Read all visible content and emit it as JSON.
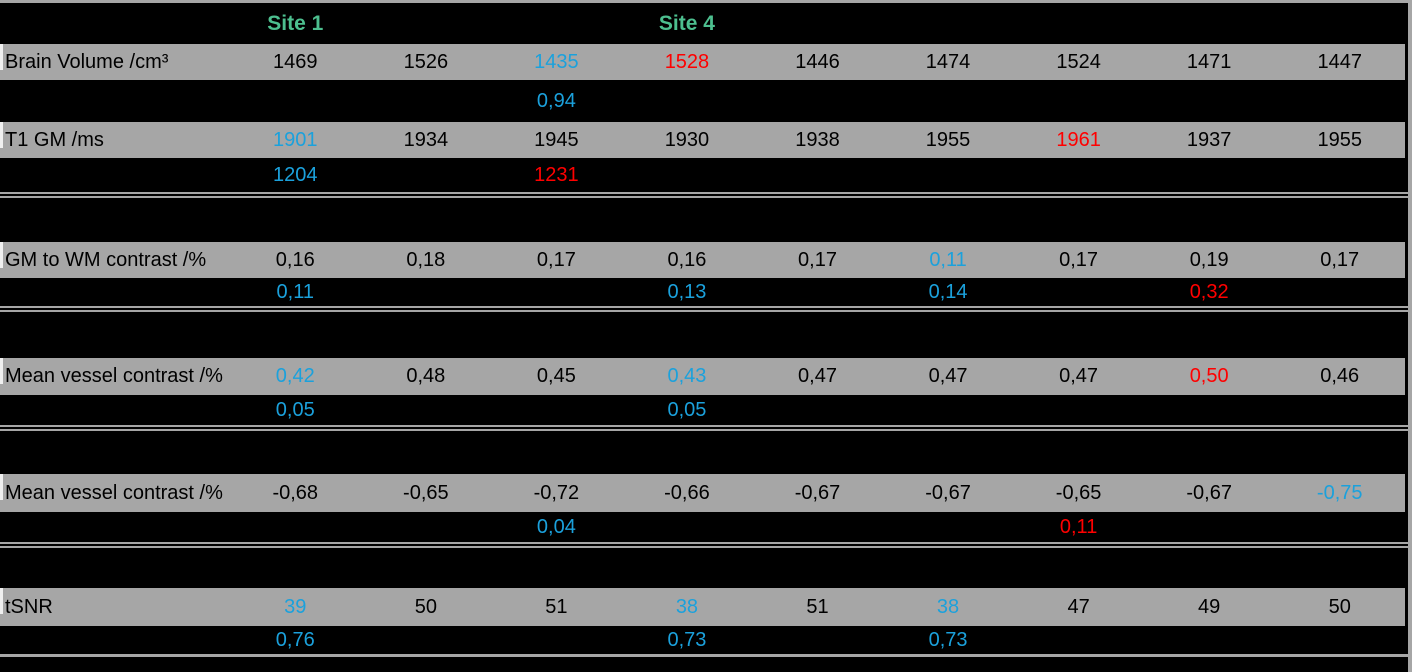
{
  "palette": {
    "background": "#000000",
    "row_gray": "#a6a6a6",
    "border_gray": "#a6a6a6",
    "site_green": "#4dbf8f",
    "highlight_blue": "#1ba1dc",
    "highlight_red": "#ff0000",
    "value_black": "#000000"
  },
  "chart_data": {
    "type": "table",
    "num_data_columns": 9,
    "site_headers": [
      {
        "label": "Site 1",
        "column_index": 1
      },
      {
        "label": "Site 4",
        "column_index": 4
      }
    ],
    "sections": [
      {
        "rows": [
          {
            "kind": "metric",
            "label": "Brain Volume /cm³",
            "values": [
              "1469",
              "1526",
              "1435",
              "1528",
              "1446",
              "1474",
              "1524",
              "1471",
              "1447"
            ],
            "colors": [
              "k",
              "k",
              "b",
              "r",
              "k",
              "k",
              "k",
              "k",
              "k"
            ]
          },
          {
            "kind": "sub",
            "label": "",
            "values": [
              "",
              "",
              "0,94",
              "",
              "",
              "",
              "",
              "",
              ""
            ],
            "colors": [
              "n",
              "n",
              "b",
              "n",
              "n",
              "n",
              "n",
              "n",
              "n"
            ]
          },
          {
            "kind": "metric",
            "label": "T1 GM /ms",
            "values": [
              "1901",
              "1934",
              "1945",
              "1930",
              "1938",
              "1955",
              "1961",
              "1937",
              "1955"
            ],
            "colors": [
              "b",
              "k",
              "k",
              "k",
              "k",
              "k",
              "r",
              "k",
              "k"
            ]
          },
          {
            "kind": "sub",
            "label": "",
            "values": [
              "1204",
              "",
              "1231",
              "",
              "",
              "",
              "",
              "",
              ""
            ],
            "colors": [
              "b",
              "n",
              "r",
              "n",
              "n",
              "n",
              "n",
              "n",
              "n"
            ]
          }
        ]
      },
      {
        "rows": [
          {
            "kind": "metric",
            "label": "GM to WM contrast /%",
            "values": [
              "0,16",
              "0,18",
              "0,17",
              "0,16",
              "0,17",
              "0,11",
              "0,17",
              "0,19",
              "0,17"
            ],
            "colors": [
              "k",
              "k",
              "k",
              "k",
              "k",
              "b",
              "k",
              "k",
              "k"
            ]
          },
          {
            "kind": "sub",
            "label": "",
            "values": [
              "0,11",
              "",
              "",
              "0,13",
              "",
              "0,14",
              "",
              "0,32",
              ""
            ],
            "colors": [
              "b",
              "n",
              "n",
              "b",
              "n",
              "b",
              "n",
              "r",
              "n"
            ]
          }
        ]
      },
      {
        "rows": [
          {
            "kind": "metric",
            "label": "Mean vessel contrast /%",
            "values": [
              "0,42",
              "0,48",
              "0,45",
              "0,43",
              "0,47",
              "0,47",
              "0,47",
              "0,50",
              "0,46"
            ],
            "colors": [
              "b",
              "k",
              "k",
              "b",
              "k",
              "k",
              "k",
              "r",
              "k"
            ]
          },
          {
            "kind": "sub",
            "label": "",
            "values": [
              "0,05",
              "",
              "",
              "0,05",
              "",
              "",
              "",
              "",
              ""
            ],
            "colors": [
              "b",
              "n",
              "n",
              "b",
              "n",
              "n",
              "n",
              "n",
              "n"
            ]
          }
        ]
      },
      {
        "rows": [
          {
            "kind": "metric",
            "label": "Mean vessel contrast /%",
            "values": [
              "-0,68",
              "-0,65",
              "-0,72",
              "-0,66",
              "-0,67",
              "-0,67",
              "-0,65",
              "-0,67",
              "-0,75"
            ],
            "colors": [
              "k",
              "k",
              "k",
              "k",
              "k",
              "k",
              "k",
              "k",
              "b"
            ]
          },
          {
            "kind": "sub",
            "label": "",
            "values": [
              "",
              "",
              "0,04",
              "",
              "",
              "",
              "0,11",
              "",
              ""
            ],
            "colors": [
              "n",
              "n",
              "b",
              "n",
              "n",
              "n",
              "r",
              "n",
              "n"
            ]
          }
        ]
      },
      {
        "rows": [
          {
            "kind": "metric",
            "label": "tSNR",
            "values": [
              "39",
              "50",
              "51",
              "38",
              "51",
              "38",
              "47",
              "49",
              "50"
            ],
            "colors": [
              "b",
              "k",
              "k",
              "b",
              "k",
              "b",
              "k",
              "k",
              "k"
            ]
          },
          {
            "kind": "sub",
            "label": "",
            "values": [
              "0,76",
              "",
              "",
              "0,73",
              "",
              "0,73",
              "",
              "",
              ""
            ],
            "colors": [
              "b",
              "n",
              "n",
              "b",
              "n",
              "b",
              "n",
              "n",
              "n"
            ]
          }
        ]
      }
    ]
  }
}
